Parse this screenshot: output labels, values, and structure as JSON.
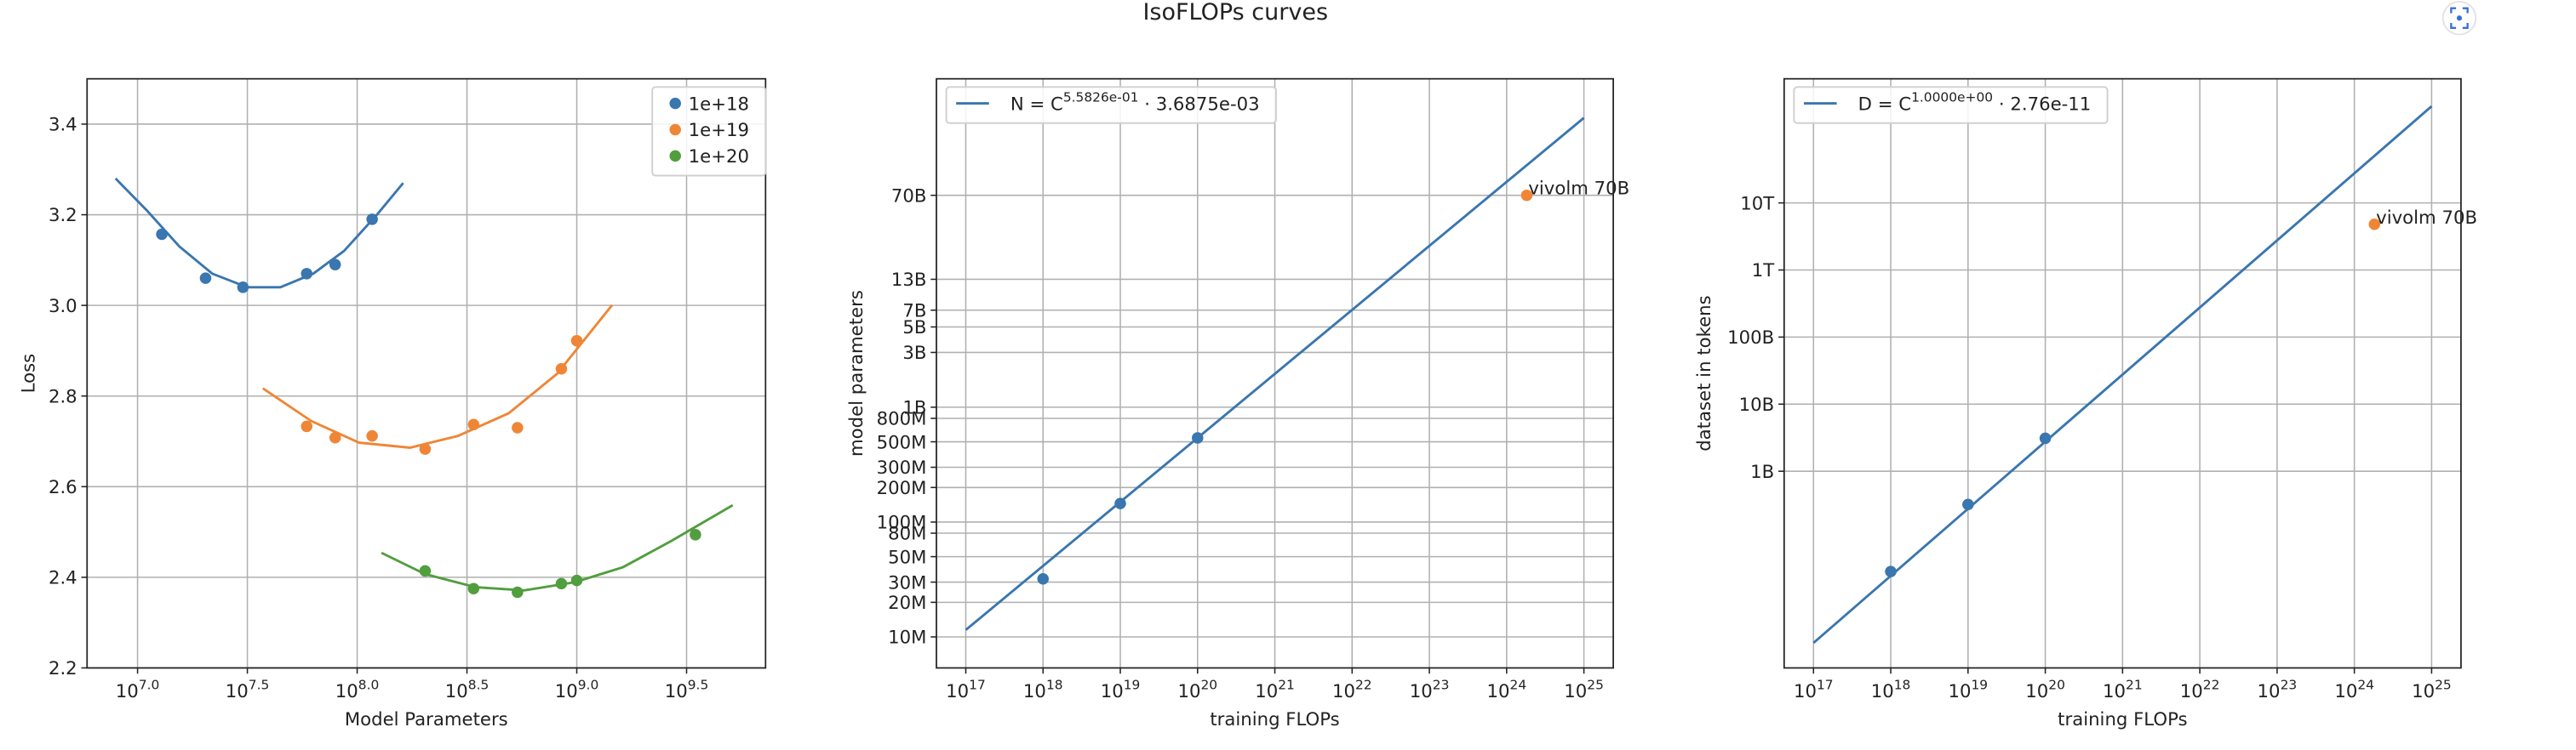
{
  "title": "IsoFLOPs curves",
  "chart_data": [
    {
      "type": "scatter",
      "xlabel": "Model Parameters",
      "ylabel": "Loss",
      "xscale": "log",
      "yscale": "linear",
      "grid": true,
      "legend": "upper right",
      "xlim": [
        5890000.0,
        7240000000.0
      ],
      "ylim": [
        2.2,
        3.5
      ],
      "xticks": [
        {
          "value": 10000000.0,
          "label": "10^7.0"
        },
        {
          "value": 31622777,
          "label": "10^7.5"
        },
        {
          "value": 100000000.0,
          "label": "10^8.0"
        },
        {
          "value": 316227766,
          "label": "10^8.5"
        },
        {
          "value": 1000000000.0,
          "label": "10^9.0"
        },
        {
          "value": 3162277660,
          "label": "10^9.5"
        }
      ],
      "yticks": [
        2.2,
        2.4,
        2.6,
        2.8,
        {
          "value": 3,
          "label": "3.0"
        },
        3.2,
        3.4
      ],
      "series": [
        {
          "name": "1e+18",
          "type": "scatter",
          "color": "#3a76af",
          "x": [
            12900000.0,
            20400000.0,
            30200000.0,
            58900000.0,
            79400000.0,
            117000000.0
          ],
          "values": [
            3.157,
            3.06,
            3.04,
            3.07,
            3.09,
            3.19
          ]
        },
        {
          "name": "1e+19",
          "type": "scatter",
          "color": "#ef8636",
          "x": [
            58900000.0,
            79400000.0,
            117000000.0,
            204000000.0,
            339000000.0,
            537000000.0,
            851000000.0,
            1000000000.0
          ],
          "values": [
            2.733,
            2.708,
            2.712,
            2.683,
            2.737,
            2.73,
            2.86,
            2.922
          ]
        },
        {
          "name": "1e+20",
          "type": "scatter",
          "color": "#519e3e",
          "x": [
            204000000.0,
            339000000.0,
            537000000.0,
            851000000.0,
            1000000000.0,
            3470000000.0
          ],
          "values": [
            2.414,
            2.375,
            2.367,
            2.386,
            2.393,
            2.494
          ]
        },
        {
          "type": "line",
          "color": "#3a76af",
          "x": [
            7940000.0,
            11000000.0,
            15500000.0,
            21900000.0,
            31600000.0,
            44700000.0,
            63100000.0,
            87100000.0,
            123000000.0,
            162000000.0
          ],
          "values": [
            3.28,
            3.21,
            3.13,
            3.07,
            3.04,
            3.04,
            3.07,
            3.12,
            3.2,
            3.27
          ]
        },
        {
          "type": "line",
          "color": "#ef8636",
          "x": [
            37200000.0,
            61700000.0,
            102000000.0,
            174000000.0,
            288000000.0,
            490000000.0,
            813000000.0,
            1450000000.0
          ],
          "values": [
            2.817,
            2.745,
            2.697,
            2.686,
            2.712,
            2.762,
            2.849,
            3.001
          ]
        },
        {
          "type": "line",
          "color": "#519e3e",
          "x": [
            129000000.0,
            204000000.0,
            347000000.0,
            575000000.0,
            977000000.0,
            1620000000.0,
            2690000000.0,
            5130000000.0
          ],
          "values": [
            2.454,
            2.407,
            2.378,
            2.371,
            2.389,
            2.422,
            2.48,
            2.559
          ]
        }
      ]
    },
    {
      "type": "line",
      "xlabel": "training FLOPs",
      "ylabel": "model parameters",
      "xscale": "log",
      "yscale": "log",
      "grid": true,
      "legend": "upper left",
      "xlim": [
        4.17e+16,
        2.4e+25
      ],
      "ylim": [
        5370000.0,
        724000000000.0
      ],
      "xticks": [
        {
          "value": 1e+17,
          "label": "10^17"
        },
        {
          "value": 1e+18,
          "label": "10^18"
        },
        {
          "value": 1e+19,
          "label": "10^19"
        },
        {
          "value": 1e+20,
          "label": "10^20"
        },
        {
          "value": 1e+21,
          "label": "10^21"
        },
        {
          "value": 1e+22,
          "label": "10^22"
        },
        {
          "value": 1e+23,
          "label": "10^23"
        },
        {
          "value": 1e+24,
          "label": "10^24"
        },
        {
          "value": 1e+25,
          "label": "10^25"
        }
      ],
      "yticks": [
        {
          "value": 10000000.0,
          "label": "10M"
        },
        {
          "value": 20000000.0,
          "label": "20M"
        },
        {
          "value": 30000000.0,
          "label": "30M"
        },
        {
          "value": 50000000.0,
          "label": "50M"
        },
        {
          "value": 80000000.0,
          "label": "80M"
        },
        {
          "value": 100000000.0,
          "label": "100M"
        },
        {
          "value": 200000000.0,
          "label": "200M"
        },
        {
          "value": 300000000.0,
          "label": "300M"
        },
        {
          "value": 500000000.0,
          "label": "500M"
        },
        {
          "value": 800000000.0,
          "label": "800M"
        },
        {
          "value": 1000000000.0,
          "label": "1B"
        },
        {
          "value": 3000000000.0,
          "label": "3B"
        },
        {
          "value": 5000000000.0,
          "label": "5B"
        },
        {
          "value": 7000000000.0,
          "label": "7B"
        },
        {
          "value": 13000000000.0,
          "label": "13B"
        },
        {
          "value": 70000000000.0,
          "label": "70B"
        }
      ],
      "series": [
        {
          "name": "N = C^5.5826e-01 · 3.6875e-03",
          "type": "line",
          "color": "#3a76af",
          "x": [
            1e+17,
            1e+25
          ],
          "values": [
            11500000.0,
            331000000000.0
          ]
        },
        {
          "type": "scatter",
          "color": "#3a76af",
          "x": [
            1e+18,
            1e+19,
            1e+20
          ],
          "values": [
            32000000.0,
            145000000.0,
            540000000.0
          ]
        },
        {
          "type": "scatter",
          "color": "#ef8636",
          "x": [
            1.82e+24
          ],
          "values": [
            70000000000.0
          ],
          "labels": [
            "vivolm 70B"
          ]
        }
      ]
    },
    {
      "type": "line",
      "xlabel": "training FLOPs",
      "ylabel": "dataset in tokens",
      "xscale": "log",
      "yscale": "log",
      "grid": true,
      "legend": "upper left",
      "xlim": [
        4.17e+16,
        2.4e+25
      ],
      "ylim": [
        1170000.0,
        708000000000000.0
      ],
      "xticks": [
        {
          "value": 1e+17,
          "label": "10^17"
        },
        {
          "value": 1e+18,
          "label": "10^18"
        },
        {
          "value": 1e+19,
          "label": "10^19"
        },
        {
          "value": 1e+20,
          "label": "10^20"
        },
        {
          "value": 1e+21,
          "label": "10^21"
        },
        {
          "value": 1e+22,
          "label": "10^22"
        },
        {
          "value": 1e+23,
          "label": "10^23"
        },
        {
          "value": 1e+24,
          "label": "10^24"
        },
        {
          "value": 1e+25,
          "label": "10^25"
        }
      ],
      "yticks": [
        {
          "value": 1000000000.0,
          "label": "1B"
        },
        {
          "value": 10000000000.0,
          "label": "10B"
        },
        {
          "value": 100000000000.0,
          "label": "100B"
        },
        {
          "value": 1000000000000.0,
          "label": "1T"
        },
        {
          "value": 10000000000000.0,
          "label": "10T"
        }
      ],
      "series": [
        {
          "name": "D = C^1.0000e+00 · 2.76e-11",
          "type": "line",
          "color": "#3a76af",
          "x": [
            1e+17,
            1e+25
          ],
          "values": [
            2760000.0,
            276000000000000.0
          ]
        },
        {
          "type": "scatter",
          "color": "#3a76af",
          "x": [
            1e+18,
            1e+19,
            1e+20
          ],
          "values": [
            32000000.0,
            320000000.0,
            3100000000.0
          ]
        },
        {
          "type": "scatter",
          "color": "#ef8636",
          "x": [
            1.82e+24
          ],
          "values": [
            4800000000000.0
          ],
          "labels": [
            "vivolm 70B"
          ]
        }
      ]
    }
  ]
}
